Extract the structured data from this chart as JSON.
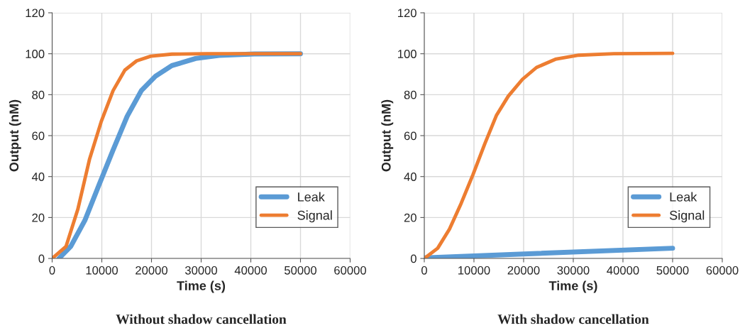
{
  "chart_data": [
    {
      "type": "line",
      "title": "Without shadow cancellation",
      "xlabel": "Time (s)",
      "ylabel": "Output (nM)",
      "xlim": [
        0,
        60000
      ],
      "xticks": [
        0,
        10000,
        20000,
        30000,
        40000,
        50000,
        60000
      ],
      "ylim": [
        0,
        120
      ],
      "yticks": [
        0,
        20,
        40,
        60,
        80,
        100,
        120
      ],
      "grid": true,
      "legend": "right",
      "marker": "none",
      "line_style": "solid",
      "series": [
        {
          "name": "Leak",
          "color": "#5b9bd5",
          "x": [
            1370,
            3740,
            6590,
            9430,
            12270,
            15100,
            17960,
            20800,
            24100,
            28900,
            33600,
            40700,
            50000
          ],
          "values": [
            0,
            5.9,
            18.6,
            35.9,
            53,
            69.4,
            82,
            89,
            94.2,
            97.7,
            99.2,
            99.9,
            100
          ]
        },
        {
          "name": "Signal",
          "color": "#ed7d31",
          "x": [
            0,
            2800,
            5170,
            7540,
            9900,
            12270,
            14640,
            17000,
            19860,
            24100,
            31200,
            50000
          ],
          "values": [
            0,
            5.9,
            24,
            48.6,
            67,
            82,
            92,
            96.5,
            98.8,
            99.8,
            100,
            100
          ]
        }
      ]
    },
    {
      "type": "line",
      "title": "With shadow cancellation",
      "xlabel": "Time (s)",
      "ylabel": "Output (nM)",
      "xlim": [
        0,
        60000
      ],
      "xticks": [
        0,
        10000,
        20000,
        30000,
        40000,
        50000,
        60000
      ],
      "ylim": [
        0,
        120
      ],
      "yticks": [
        0,
        20,
        40,
        60,
        80,
        100,
        120
      ],
      "grid": true,
      "legend": "right",
      "marker": "none",
      "line_style": "solid",
      "series": [
        {
          "name": "Leak",
          "color": "#5b9bd5",
          "x": [
            0,
            50000
          ],
          "values": [
            0.3,
            5
          ]
        },
        {
          "name": "Signal",
          "color": "#ed7d31",
          "x": [
            0,
            2700,
            5070,
            7440,
            9810,
            12180,
            14550,
            16920,
            19760,
            22600,
            26400,
            31100,
            38200,
            50000
          ],
          "values": [
            0,
            5,
            14.3,
            27,
            41,
            56,
            70,
            79.3,
            87.5,
            93.3,
            97.3,
            99.3,
            100,
            100.2
          ]
        }
      ]
    }
  ]
}
